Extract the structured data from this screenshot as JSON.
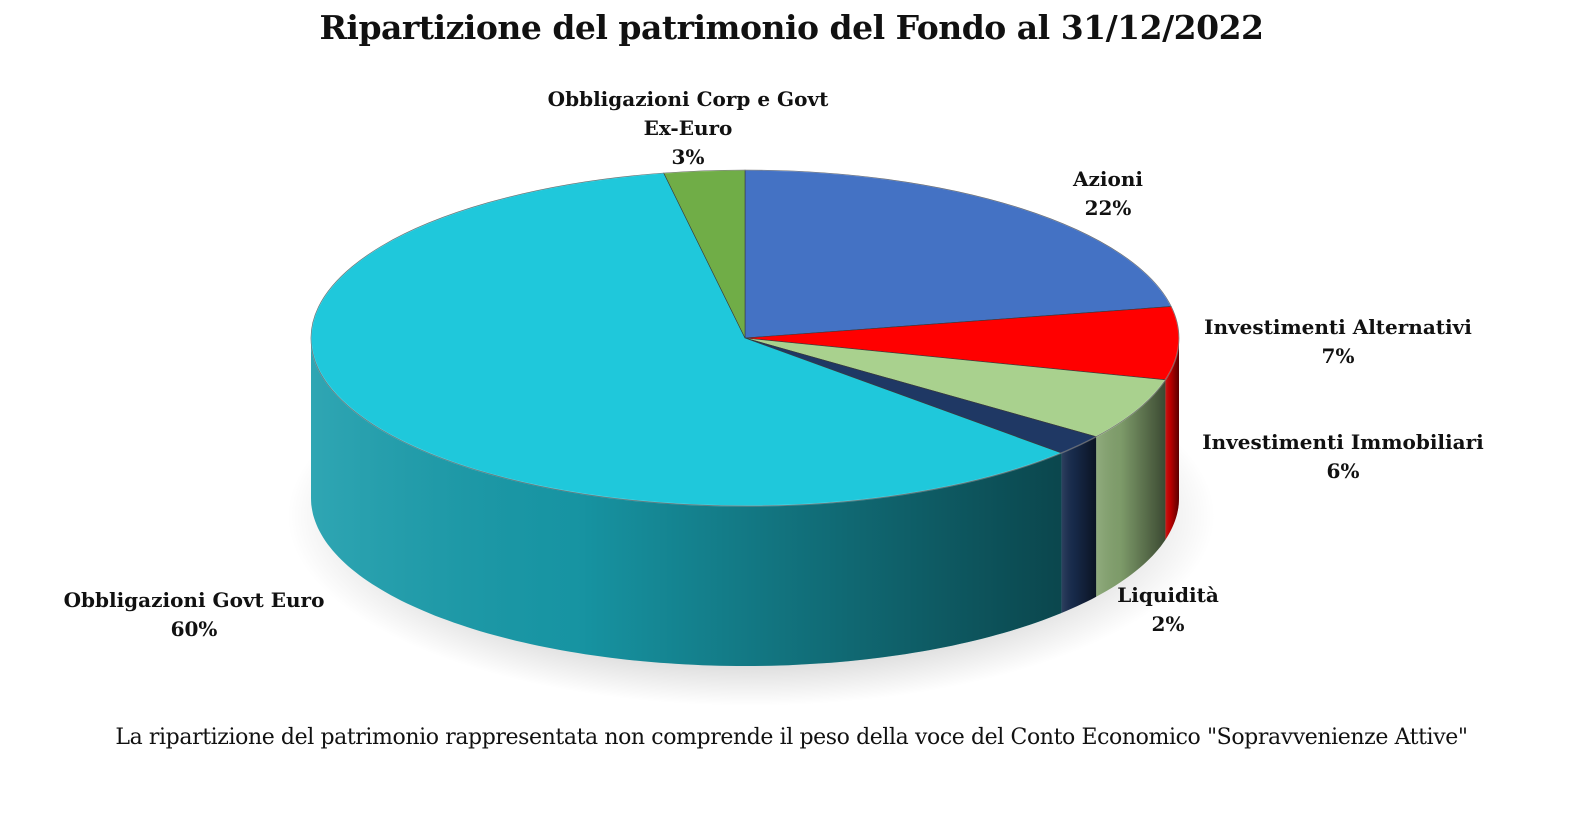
{
  "chart_data": {
    "type": "pie",
    "title": "Ripartizione del patrimonio del Fondo al 31/12/2022",
    "slices": [
      {
        "label": [
          "Azioni"
        ],
        "percent_label": "22%",
        "value": 22,
        "color": "#4472C4"
      },
      {
        "label": [
          "Investimenti Alternativi"
        ],
        "percent_label": "7%",
        "value": 7,
        "color": "#FF0000"
      },
      {
        "label": [
          "Investimenti Immobiliari"
        ],
        "percent_label": "6%",
        "value": 6,
        "color": "#A9D18E"
      },
      {
        "label": [
          "Liquidità"
        ],
        "percent_label": "2%",
        "value": 2,
        "color": "#1F3864"
      },
      {
        "label": [
          "Obbligazioni Govt Euro"
        ],
        "percent_label": "60%",
        "value": 60,
        "color": "#1FC8DB"
      },
      {
        "label": [
          "Obbligazioni Corp e Govt",
          "Ex-Euro"
        ],
        "percent_label": "3%",
        "value": 3,
        "color": "#70AD47"
      }
    ],
    "start": "12 o'clock",
    "direction": "clockwise",
    "style": "3d-tilted"
  },
  "footnote": "La ripartizione del patrimonio rappresentata non comprende il peso della voce del Conto Economico \"Sopravvenienze Attive\""
}
